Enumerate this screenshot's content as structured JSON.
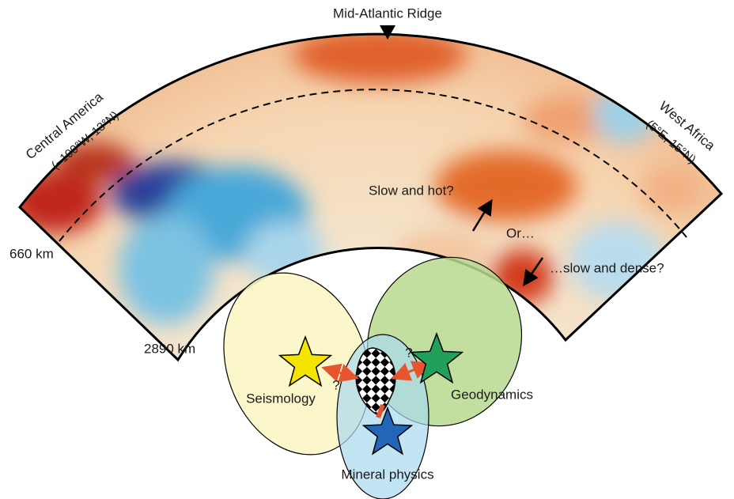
{
  "header": {
    "title": "Mid-Atlantic Ridge"
  },
  "locations": {
    "left": {
      "name": "Central America",
      "coords": "(−100°W, 13°N)"
    },
    "right": {
      "name": "West Africa",
      "coords": "(5°E, 15°N)"
    }
  },
  "depths": {
    "upper": "660 km",
    "lower": "2890 km"
  },
  "annotations": {
    "hot": "Slow and hot?",
    "or": "Or…",
    "dense": "…slow and dense?"
  },
  "venn": {
    "seismology": "Seismology",
    "geodynamics": "Geodynamics",
    "mineral_physics": "Mineral physics",
    "question_left": "?",
    "question_right": "?"
  }
}
